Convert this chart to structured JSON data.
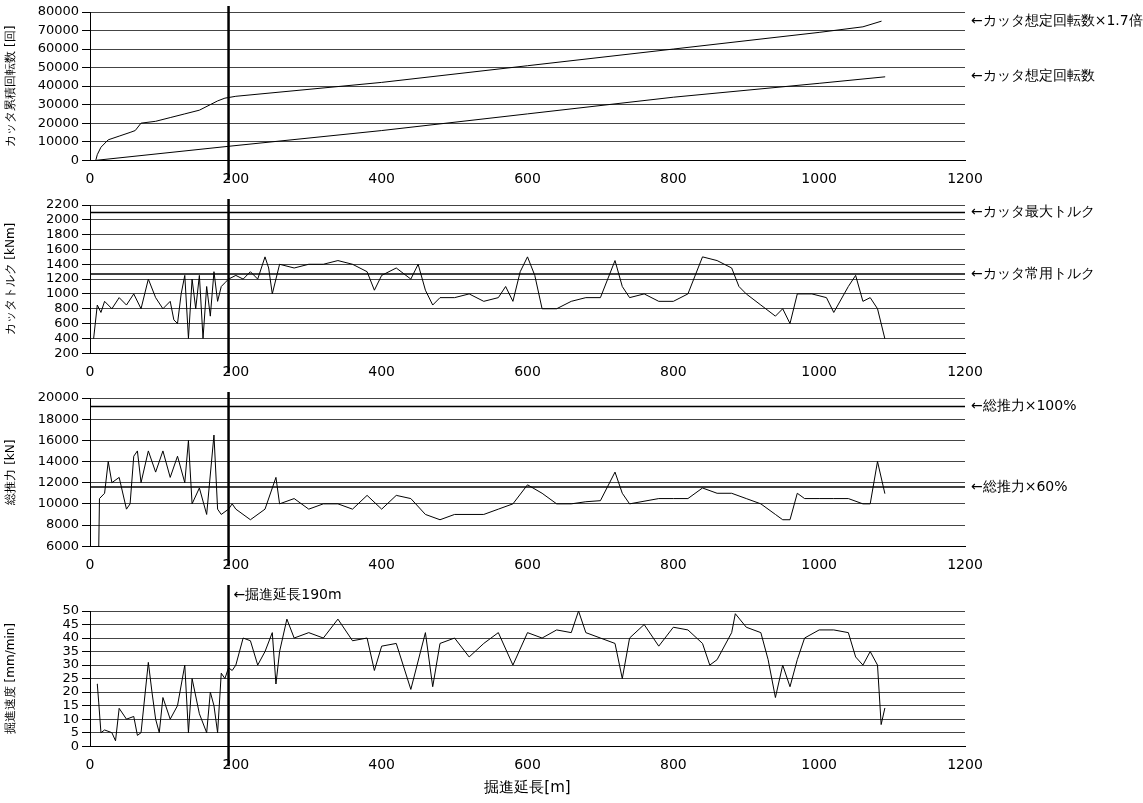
{
  "chart_data": [
    {
      "type": "line",
      "ylabel": "カッタ累積回転数 [回]",
      "xlim": [
        0,
        1200
      ],
      "xticks": [
        0,
        200,
        400,
        600,
        800,
        1000,
        1200
      ],
      "ylim": [
        0,
        80000
      ],
      "yticks": [
        0,
        10000,
        20000,
        30000,
        40000,
        50000,
        60000,
        70000,
        80000
      ],
      "grid": "y",
      "marker": "none",
      "line_style": "solid",
      "series": [
        {
          "name": "←カッタ想定回転数×1.7倍",
          "color": "#000000",
          "x": [
            8,
            10,
            15,
            25,
            40,
            55,
            62,
            70,
            90,
            110,
            130,
            150,
            165,
            175,
            185,
            200,
            400,
            600,
            800,
            1000,
            1060,
            1085
          ],
          "values": [
            0,
            3000,
            7000,
            11000,
            13000,
            15000,
            16000,
            20000,
            21000,
            23000,
            25000,
            27000,
            30000,
            32000,
            33500,
            34500,
            42000,
            51000,
            60000,
            69000,
            72000,
            75000
          ]
        },
        {
          "name": "←カッタ想定回転数",
          "color": "#000000",
          "x": [
            10,
            190,
            400,
            600,
            800,
            1000,
            1090
          ],
          "values": [
            0,
            7500,
            16000,
            25000,
            34000,
            41500,
            45000
          ]
        }
      ],
      "ref_lines": [
        {
          "axis": "x",
          "value": 190,
          "label": null
        }
      ]
    },
    {
      "type": "line",
      "ylabel": "カッタトルク [kNm]",
      "xlim": [
        0,
        1200
      ],
      "xticks": [
        0,
        200,
        400,
        600,
        800,
        1000,
        1200
      ],
      "ylim": [
        200,
        2200
      ],
      "yticks": [
        200,
        400,
        600,
        800,
        1000,
        1200,
        1400,
        1600,
        1800,
        2000,
        2200
      ],
      "grid": "y",
      "marker": "none",
      "line_style": "solid",
      "series": [
        {
          "color": "#000000",
          "x": [
            5,
            10,
            15,
            20,
            30,
            40,
            50,
            60,
            70,
            80,
            90,
            100,
            110,
            115,
            120,
            125,
            130,
            135,
            140,
            145,
            150,
            155,
            160,
            165,
            170,
            175,
            180,
            185,
            190,
            200,
            210,
            220,
            230,
            240,
            245,
            250,
            260,
            280,
            300,
            320,
            340,
            360,
            380,
            390,
            400,
            420,
            440,
            450,
            460,
            470,
            480,
            500,
            520,
            540,
            560,
            570,
            580,
            590,
            600,
            610,
            620,
            640,
            660,
            680,
            700,
            710,
            720,
            730,
            740,
            760,
            780,
            800,
            820,
            840,
            860,
            880,
            890,
            900,
            920,
            940,
            950,
            960,
            970,
            990,
            1010,
            1020,
            1040,
            1050,
            1060,
            1070,
            1080,
            1090
          ],
          "values": [
            400,
            850,
            750,
            900,
            800,
            950,
            850,
            1000,
            800,
            1200,
            950,
            800,
            900,
            650,
            600,
            1000,
            1250,
            400,
            1200,
            800,
            1250,
            400,
            1100,
            700,
            1300,
            900,
            1100,
            1150,
            1200,
            1250,
            1200,
            1300,
            1200,
            1500,
            1350,
            1000,
            1400,
            1350,
            1400,
            1400,
            1450,
            1400,
            1300,
            1050,
            1250,
            1350,
            1200,
            1400,
            1050,
            850,
            950,
            950,
            1000,
            900,
            950,
            1100,
            900,
            1300,
            1500,
            1250,
            800,
            800,
            900,
            950,
            950,
            1200,
            1450,
            1100,
            950,
            1000,
            900,
            900,
            1000,
            1500,
            1450,
            1350,
            1100,
            1000,
            850,
            700,
            800,
            600,
            1000,
            1000,
            950,
            750,
            1100,
            1250,
            900,
            950,
            800,
            400
          ]
        }
      ],
      "ref_lines": [
        {
          "axis": "x",
          "value": 190,
          "label": null
        },
        {
          "axis": "y",
          "value": 2100,
          "label": "←カッタ最大トルク"
        },
        {
          "axis": "y",
          "value": 1270,
          "label": "←カッタ常用トルク"
        }
      ]
    },
    {
      "type": "line",
      "ylabel": "総推力 [kN]",
      "xlim": [
        0,
        1200
      ],
      "xticks": [
        0,
        200,
        400,
        600,
        800,
        1000,
        1200
      ],
      "ylim": [
        6000,
        20000
      ],
      "yticks": [
        6000,
        8000,
        10000,
        12000,
        14000,
        16000,
        18000,
        20000
      ],
      "grid": "y",
      "marker": "none",
      "line_style": "solid",
      "series": [
        {
          "color": "#000000",
          "x": [
            12,
            13,
            20,
            25,
            30,
            40,
            50,
            55,
            60,
            65,
            70,
            80,
            90,
            100,
            110,
            120,
            130,
            135,
            140,
            150,
            160,
            170,
            175,
            180,
            190,
            195,
            200,
            220,
            240,
            255,
            260,
            280,
            300,
            320,
            340,
            360,
            380,
            400,
            420,
            440,
            460,
            480,
            500,
            540,
            560,
            580,
            600,
            620,
            640,
            660,
            680,
            700,
            720,
            730,
            740,
            780,
            800,
            820,
            840,
            860,
            880,
            900,
            920,
            940,
            950,
            960,
            970,
            980,
            1000,
            1020,
            1040,
            1060,
            1070,
            1080,
            1090
          ],
          "values": [
            6000,
            10500,
            11000,
            14000,
            12000,
            12500,
            9500,
            10000,
            14500,
            15000,
            12000,
            15000,
            13000,
            15000,
            12500,
            14500,
            12000,
            16000,
            10000,
            11500,
            9000,
            16500,
            9500,
            9000,
            9500,
            10000,
            9500,
            8500,
            9500,
            12500,
            10000,
            10500,
            9500,
            10000,
            10000,
            9500,
            10800,
            9500,
            10800,
            10500,
            9000,
            8500,
            9000,
            9000,
            9500,
            10000,
            11800,
            11000,
            10000,
            10000,
            10200,
            10300,
            13000,
            11000,
            10000,
            10500,
            10500,
            10500,
            11500,
            11000,
            11000,
            10500,
            10000,
            9000,
            8500,
            8500,
            11000,
            10500,
            10500,
            10500,
            10500,
            10000,
            10000,
            14000,
            11000
          ]
        }
      ],
      "ref_lines": [
        {
          "axis": "x",
          "value": 190,
          "label": null
        },
        {
          "axis": "y",
          "value": 19200,
          "label": "←総推力×100%"
        },
        {
          "axis": "y",
          "value": 11600,
          "label": "←総推力×60%"
        }
      ]
    },
    {
      "type": "line",
      "xlabel": "掘進延長[m]",
      "ylabel": "掘進速度 [mm/min]",
      "xlim": [
        0,
        1200
      ],
      "xticks": [
        0,
        200,
        400,
        600,
        800,
        1000,
        1200
      ],
      "ylim": [
        0,
        50
      ],
      "yticks": [
        0,
        5,
        10,
        15,
        20,
        25,
        30,
        35,
        40,
        45,
        50
      ],
      "grid": "y",
      "marker": "none",
      "line_style": "solid",
      "series": [
        {
          "color": "#000000",
          "x": [
            10,
            12,
            15,
            20,
            30,
            35,
            40,
            50,
            60,
            65,
            70,
            80,
            85,
            90,
            95,
            100,
            110,
            120,
            130,
            135,
            140,
            150,
            160,
            165,
            170,
            175,
            180,
            185,
            190,
            195,
            200,
            210,
            220,
            230,
            240,
            250,
            255,
            260,
            270,
            280,
            300,
            320,
            340,
            360,
            380,
            390,
            400,
            420,
            440,
            460,
            470,
            480,
            500,
            520,
            540,
            560,
            580,
            600,
            620,
            640,
            660,
            670,
            680,
            700,
            720,
            730,
            740,
            760,
            780,
            800,
            820,
            840,
            850,
            860,
            880,
            885,
            900,
            920,
            930,
            940,
            950,
            960,
            970,
            980,
            1000,
            1020,
            1040,
            1050,
            1060,
            1070,
            1080,
            1085,
            1090
          ],
          "values": [
            23,
            16,
            5,
            6,
            5,
            2,
            14,
            10,
            11,
            4,
            5,
            31,
            20,
            10,
            5,
            18,
            10,
            15,
            30,
            5,
            25,
            12,
            5,
            20,
            15,
            5,
            27,
            25,
            29,
            28,
            30,
            40,
            39,
            30,
            35,
            42,
            23,
            35,
            47,
            40,
            42,
            40,
            47,
            39,
            40,
            28,
            37,
            38,
            21,
            42,
            22,
            38,
            40,
            33,
            38,
            42,
            30,
            42,
            40,
            43,
            42,
            50,
            42,
            40,
            38,
            25,
            40,
            45,
            37,
            44,
            43,
            38,
            30,
            32,
            42,
            49,
            44,
            42,
            32,
            18,
            30,
            22,
            32,
            40,
            43,
            43,
            42,
            33,
            30,
            35,
            30,
            8,
            14
          ]
        }
      ],
      "ref_lines": [
        {
          "axis": "x",
          "value": 190,
          "label": "←掘進延長190m"
        }
      ]
    }
  ]
}
